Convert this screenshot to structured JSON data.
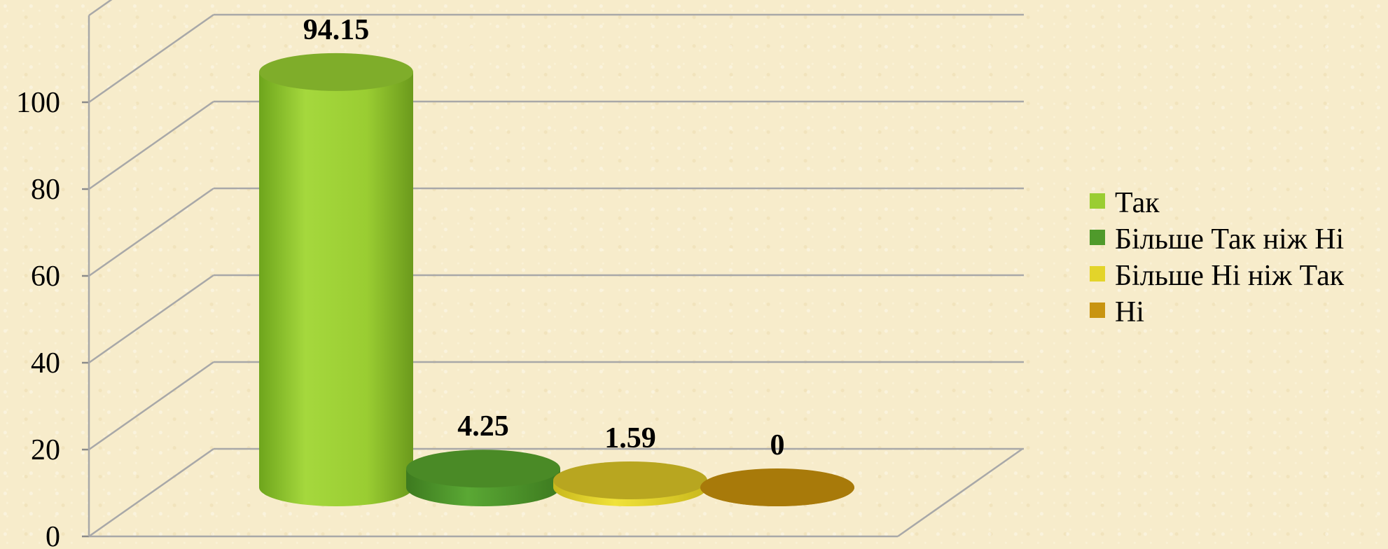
{
  "chart_data": {
    "type": "bar",
    "style": "3d-cylinder",
    "categories": [
      "Так",
      "Більше Так ніж Ні",
      "Більше Ні ніж Так",
      "Ні"
    ],
    "values": [
      94.15,
      4.25,
      1.59,
      0
    ],
    "data_labels": [
      "94.15",
      "4.25",
      "1.59",
      "0"
    ],
    "colors": [
      "#9acd32",
      "#4f9a2b",
      "#d8cf2a",
      "#c89410"
    ],
    "ylim": [
      0,
      100
    ],
    "yticks": [
      0,
      20,
      40,
      60,
      80,
      100
    ],
    "ytick_labels": [
      "0",
      "20",
      "40",
      "60",
      "80",
      "100"
    ],
    "grid": true,
    "legend": {
      "position": "right",
      "entries": [
        "Так",
        "Більше Так ніж Ні",
        "Більше Ні ніж Так",
        "Ні"
      ]
    }
  }
}
